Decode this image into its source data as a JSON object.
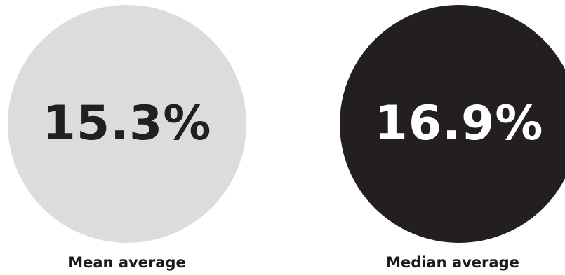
{
  "stats": [
    {
      "value": "15.3%",
      "label": "Mean average",
      "circle_color": "#dcdcdd",
      "text_color": "#231f20"
    },
    {
      "value": "16.9%",
      "label": "Median average",
      "circle_color": "#231f20",
      "text_color": "#ffffff"
    }
  ]
}
